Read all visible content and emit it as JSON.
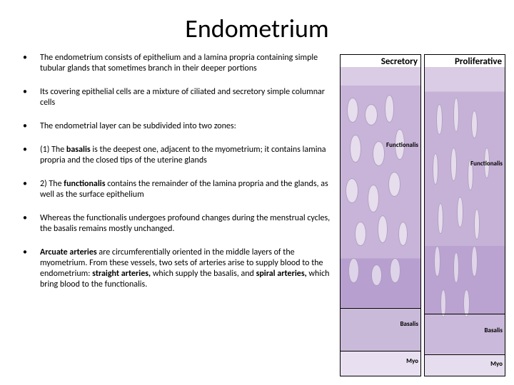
{
  "title": "Endometrium",
  "bullets": [
    {
      "html": "The endometrium consists of epithelium and a lamina propria containing simple tubular glands that sometimes branch in their deeper portions"
    },
    {
      "html": "Its covering epithelial cells are a mixture of ciliated and secretory simple columnar cells"
    },
    {
      "html": "The endometrial layer can be subdivided into two zones:"
    },
    {
      "html": "(1) The <span class=\"bold\">basalis</span> is the deepest one, adjacent to the myometrium; it contains lamina propria and the closed tips of the uterine glands"
    },
    {
      "html": "2) The <span class=\"bold\">functionalis</span> contains the remainder of the lamina propria and the glands, as well as the surface epithelium"
    },
    {
      "html": "Whereas the functionalis undergoes profound changes during the menstrual cycles, the basalis remains mostly unchanged."
    },
    {
      "html": "<span class=\"bold\">Arcuate arteries</span> are circumferentially oriented in the middle layers of the myometrium. From these vessels, two sets of arteries arise to supply blood to the endometrium: <span class=\"bold\">straight arteries,</span> which supply the basalis, and <span class=\"bold\">spiral arteries,</span> which bring blood to the functionalis."
    }
  ],
  "figure": {
    "panels": [
      {
        "label": "Secretory",
        "tissue_class": "tissue-secretory",
        "regions": [
          {
            "name": "Functionalis",
            "top_pct": 24
          },
          {
            "name": "Basalis",
            "top_pct": 82
          },
          {
            "name": "Myo",
            "top_pct": 94
          }
        ],
        "lines_pct": [
          78,
          92
        ],
        "glands": [
          {
            "l": 8,
            "t": 10,
            "w": 14,
            "h": 8
          },
          {
            "l": 30,
            "t": 12,
            "w": 16,
            "h": 7
          },
          {
            "l": 55,
            "t": 9,
            "w": 12,
            "h": 9
          },
          {
            "l": 12,
            "t": 22,
            "w": 14,
            "h": 9
          },
          {
            "l": 40,
            "t": 24,
            "w": 15,
            "h": 8
          },
          {
            "l": 68,
            "t": 20,
            "w": 12,
            "h": 10
          },
          {
            "l": 6,
            "t": 36,
            "w": 16,
            "h": 8
          },
          {
            "l": 34,
            "t": 38,
            "w": 14,
            "h": 9
          },
          {
            "l": 60,
            "t": 34,
            "w": 15,
            "h": 8
          },
          {
            "l": 18,
            "t": 50,
            "w": 14,
            "h": 8
          },
          {
            "l": 46,
            "t": 48,
            "w": 13,
            "h": 9
          },
          {
            "l": 72,
            "t": 50,
            "w": 12,
            "h": 8
          },
          {
            "l": 10,
            "t": 62,
            "w": 13,
            "h": 8
          },
          {
            "l": 38,
            "t": 64,
            "w": 14,
            "h": 7
          },
          {
            "l": 62,
            "t": 62,
            "w": 13,
            "h": 8
          }
        ]
      },
      {
        "label": "Proliferative",
        "tissue_class": "tissue-proliferative",
        "regions": [
          {
            "name": "Functionalis",
            "top_pct": 30
          },
          {
            "name": "Basalis",
            "top_pct": 84
          },
          {
            "name": "Myo",
            "top_pct": 95
          }
        ],
        "lines_pct": [
          80,
          93
        ],
        "glands": [
          {
            "l": 14,
            "t": 12,
            "w": 8,
            "h": 10
          },
          {
            "l": 36,
            "t": 10,
            "w": 7,
            "h": 11
          },
          {
            "l": 58,
            "t": 14,
            "w": 8,
            "h": 9
          },
          {
            "l": 10,
            "t": 28,
            "w": 7,
            "h": 10
          },
          {
            "l": 32,
            "t": 26,
            "w": 8,
            "h": 11
          },
          {
            "l": 54,
            "t": 30,
            "w": 7,
            "h": 10
          },
          {
            "l": 74,
            "t": 26,
            "w": 7,
            "h": 10
          },
          {
            "l": 16,
            "t": 44,
            "w": 7,
            "h": 10
          },
          {
            "l": 40,
            "t": 42,
            "w": 8,
            "h": 10
          },
          {
            "l": 62,
            "t": 46,
            "w": 7,
            "h": 10
          },
          {
            "l": 12,
            "t": 58,
            "w": 8,
            "h": 10
          },
          {
            "l": 36,
            "t": 60,
            "w": 7,
            "h": 10
          },
          {
            "l": 58,
            "t": 58,
            "w": 8,
            "h": 10
          },
          {
            "l": 20,
            "t": 72,
            "w": 7,
            "h": 9
          },
          {
            "l": 48,
            "t": 72,
            "w": 8,
            "h": 9
          }
        ]
      }
    ]
  }
}
